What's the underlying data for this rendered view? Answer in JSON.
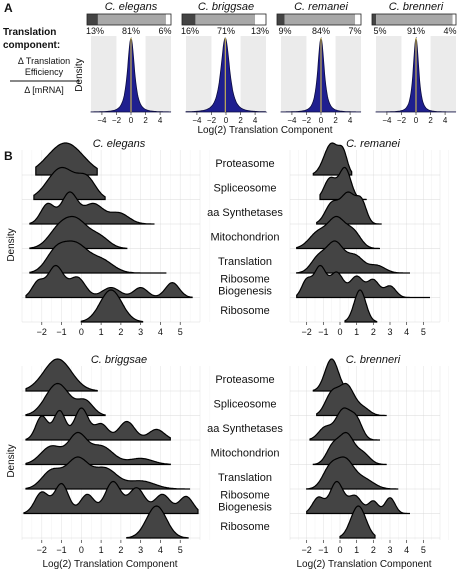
{
  "chart_data": [
    {
      "panel": "A",
      "type": "area",
      "description_label_lines": [
        "Translation",
        "component:",
        "Δ Translation",
        "Efficiency",
        "Δ [mRNA]"
      ],
      "ylabel": "Density",
      "xlabel": "Log(2) Translation Component",
      "xlim": [
        -5.5,
        5.5
      ],
      "x_ticks": [
        -4,
        -2,
        0,
        2,
        4
      ],
      "fill_color": "#1f1f8f",
      "species": [
        {
          "name": "C. elegans",
          "bar_percents": [
            "13%",
            "81%",
            "6%"
          ],
          "segments": [
            0.13,
            0.81,
            0.06
          ],
          "peak": 0.0,
          "spread": 0.75
        },
        {
          "name": "C. briggsae",
          "bar_percents": [
            "16%",
            "71%",
            "13%"
          ],
          "segments": [
            0.16,
            0.71,
            0.13
          ],
          "peak": -0.1,
          "spread": 0.95
        },
        {
          "name": "C. remanei",
          "bar_percents": [
            "9%",
            "84%",
            "7%"
          ],
          "segments": [
            0.09,
            0.84,
            0.07
          ],
          "peak": 0.0,
          "spread": 0.7
        },
        {
          "name": "C. brenneri",
          "bar_percents": [
            "5%",
            "91%",
            "4%"
          ],
          "segments": [
            0.05,
            0.91,
            0.04
          ],
          "peak": 0.0,
          "spread": 0.6
        }
      ]
    },
    {
      "panel": "B",
      "type": "area",
      "subtype": "ridgeline",
      "ylabel": "Density",
      "xlabel": "Log(2) Translation Component",
      "categories": [
        "Proteasome",
        "Spliceosome",
        "aa Synthetases",
        "Mitochondrion",
        "Translation",
        "Ribosome Biogenesis",
        "Ribosome"
      ],
      "category_label_lines": [
        [
          "Proteasome"
        ],
        [
          "Spliceosome"
        ],
        [
          "aa Synthetases"
        ],
        [
          "Mitochondrion"
        ],
        [
          "Translation"
        ],
        [
          "Ribosome",
          "Biogenesis"
        ],
        [
          "Ribosome"
        ]
      ],
      "fill_color": "#444444",
      "species": [
        {
          "name": "C. elegans",
          "x_ticks": [
            -2,
            -1,
            0,
            1,
            2,
            3,
            4,
            5
          ],
          "xlim": [
            -3,
            6
          ],
          "ridges": [
            {
              "category": "Proteasome",
              "range": [
                -2.3,
                0.8
              ],
              "peaks": [
                [
                  -0.8,
                  0.9,
                  1.0
                ]
              ]
            },
            {
              "category": "Spliceosome",
              "range": [
                -2.4,
                1.2
              ],
              "peaks": [
                [
                  -1.0,
                  0.7,
                  0.6
                ],
                [
                  0.3,
                  0.45,
                  0.35
                ]
              ]
            },
            {
              "category": "aa Synthetases",
              "range": [
                -2.6,
                3.7
              ],
              "peaks": [
                [
                  -1.7,
                  0.35,
                  0.55
                ],
                [
                  -0.6,
                  0.4,
                  0.85
                ],
                [
                  0.6,
                  0.5,
                  0.55
                ],
                [
                  1.9,
                  0.5,
                  0.3
                ]
              ]
            },
            {
              "category": "Mitochondrion",
              "range": [
                -2.6,
                2.3
              ],
              "peaks": [
                [
                  -1.1,
                  0.55,
                  0.6
                ],
                [
                  -0.2,
                  0.55,
                  0.75
                ],
                [
                  0.9,
                  0.5,
                  0.35
                ]
              ]
            },
            {
              "category": "Translation",
              "range": [
                -2.6,
                4.3
              ],
              "peaks": [
                [
                  -1.3,
                  0.5,
                  0.55
                ],
                [
                  -0.3,
                  0.6,
                  0.75
                ],
                [
                  1.0,
                  0.6,
                  0.35
                ]
              ]
            },
            {
              "category": "Ribosome Biogenesis",
              "range": [
                -2.8,
                5.6
              ],
              "peaks": [
                [
                  -2.2,
                  0.3,
                  0.45
                ],
                [
                  -1.3,
                  0.4,
                  0.95
                ],
                [
                  -0.2,
                  0.4,
                  0.6
                ],
                [
                  1.5,
                  0.45,
                  0.3
                ],
                [
                  3.0,
                  0.35,
                  0.3
                ],
                [
                  4.6,
                  0.35,
                  0.45
                ]
              ]
            },
            {
              "category": "Ribosome",
              "range": [
                0.0,
                3.1
              ],
              "peaks": [
                [
                  1.5,
                  0.55,
                  1.0
                ]
              ]
            }
          ]
        },
        {
          "name": "C. remanei",
          "x_ticks": [
            -2,
            -1,
            0,
            1,
            2,
            3,
            4,
            5
          ],
          "xlim": [
            -3,
            6
          ],
          "ridges": [
            {
              "category": "Proteasome",
              "range": [
                -1.6,
                0.7
              ],
              "peaks": [
                [
                  -0.5,
                  0.45,
                  1.0
                ],
                [
                  0.2,
                  0.25,
                  0.55
                ]
              ]
            },
            {
              "category": "Spliceosome",
              "range": [
                -1.2,
                1.6
              ],
              "peaks": [
                [
                  -0.6,
                  0.35,
                  0.6
                ],
                [
                  0.3,
                  0.35,
                  0.9
                ]
              ]
            },
            {
              "category": "aa Synthetases",
              "range": [
                -1.4,
                2.5
              ],
              "peaks": [
                [
                  -0.5,
                  0.4,
                  0.45
                ],
                [
                  0.5,
                  0.45,
                  0.7
                ],
                [
                  1.3,
                  0.3,
                  0.45
                ]
              ]
            },
            {
              "category": "Mitochondrion",
              "range": [
                -2.6,
                2.4
              ],
              "peaks": [
                [
                  -1.3,
                  0.55,
                  0.45
                ],
                [
                  -0.2,
                  0.5,
                  0.8
                ],
                [
                  0.8,
                  0.45,
                  0.45
                ]
              ]
            },
            {
              "category": "Translation",
              "range": [
                -2.6,
                4.2
              ],
              "peaks": [
                [
                  -1.3,
                  0.45,
                  0.4
                ],
                [
                  -0.3,
                  0.5,
                  0.8
                ],
                [
                  0.9,
                  0.5,
                  0.45
                ],
                [
                  2.2,
                  0.5,
                  0.2
                ]
              ]
            },
            {
              "category": "Ribosome Biogenesis",
              "range": [
                -2.6,
                5.4
              ],
              "peaks": [
                [
                  -2.0,
                  0.3,
                  0.45
                ],
                [
                  -1.2,
                  0.35,
                  0.8
                ],
                [
                  -0.2,
                  0.4,
                  0.65
                ],
                [
                  1.0,
                  0.4,
                  0.55
                ],
                [
                  2.0,
                  0.35,
                  0.45
                ],
                [
                  3.0,
                  0.35,
                  0.3
                ]
              ]
            },
            {
              "category": "Ribosome",
              "range": [
                0.3,
                2.2
              ],
              "peaks": [
                [
                  1.2,
                  0.35,
                  1.0
                ]
              ]
            }
          ]
        },
        {
          "name": "C. briggsae",
          "x_ticks": [
            -2,
            -1,
            0,
            1,
            2,
            3,
            4,
            5
          ],
          "xlim": [
            -3,
            6
          ],
          "ridges": [
            {
              "category": "Proteasome",
              "range": [
                -2.8,
                0.8
              ],
              "peaks": [
                [
                  -1.2,
                  0.7,
                  1.0
                ]
              ]
            },
            {
              "category": "Spliceosome",
              "range": [
                -2.8,
                1.2
              ],
              "peaks": [
                [
                  -1.2,
                  0.6,
                  0.8
                ],
                [
                  0.2,
                  0.4,
                  0.35
                ]
              ]
            },
            {
              "category": "aa Synthetases",
              "range": [
                -2.8,
                4.5
              ],
              "peaks": [
                [
                  -2.0,
                  0.3,
                  0.45
                ],
                [
                  -1.1,
                  0.3,
                  0.55
                ],
                [
                  0.0,
                  0.35,
                  0.6
                ],
                [
                  1.0,
                  0.35,
                  0.3
                ],
                [
                  2.3,
                  0.4,
                  0.35
                ],
                [
                  3.8,
                  0.4,
                  0.2
                ]
              ]
            },
            {
              "category": "Mitochondrion",
              "range": [
                -2.8,
                4.5
              ],
              "peaks": [
                [
                  -1.5,
                  0.55,
                  0.45
                ],
                [
                  -0.2,
                  0.45,
                  0.7
                ],
                [
                  1.0,
                  0.6,
                  0.45
                ],
                [
                  3.0,
                  0.6,
                  0.15
                ]
              ]
            },
            {
              "category": "Translation",
              "range": [
                -2.8,
                5.5
              ],
              "peaks": [
                [
                  -1.5,
                  0.5,
                  0.45
                ],
                [
                  -0.2,
                  0.55,
                  0.75
                ],
                [
                  1.2,
                  0.6,
                  0.5
                ],
                [
                  3.0,
                  0.7,
                  0.2
                ]
              ]
            },
            {
              "category": "Ribosome Biogenesis",
              "range": [
                -2.9,
                5.9
              ],
              "peaks": [
                [
                  -2.0,
                  0.35,
                  0.5
                ],
                [
                  -1.0,
                  0.35,
                  0.7
                ],
                [
                  0.3,
                  0.35,
                  0.45
                ],
                [
                  1.6,
                  0.4,
                  0.75
                ],
                [
                  2.8,
                  0.4,
                  0.6
                ],
                [
                  4.1,
                  0.4,
                  0.45
                ],
                [
                  5.3,
                  0.35,
                  0.4
                ]
              ]
            },
            {
              "category": "Ribosome",
              "range": [
                2.3,
                5.4
              ],
              "peaks": [
                [
                  3.8,
                  0.5,
                  1.0
                ]
              ]
            }
          ]
        },
        {
          "name": "C. brenneri",
          "x_ticks": [
            -2,
            -1,
            0,
            1,
            2,
            3,
            4,
            5
          ],
          "xlim": [
            -3,
            6
          ],
          "ridges": [
            {
              "category": "Proteasome",
              "range": [
                -1.6,
                0.6
              ],
              "peaks": [
                [
                  -0.5,
                  0.4,
                  1.0
                ]
              ]
            },
            {
              "category": "Spliceosome",
              "range": [
                -1.4,
                2.8
              ],
              "peaks": [
                [
                  -0.5,
                  0.4,
                  0.6
                ],
                [
                  0.4,
                  0.45,
                  0.85
                ],
                [
                  1.4,
                  0.4,
                  0.2
                ]
              ]
            },
            {
              "category": "aa Synthetases",
              "range": [
                -1.8,
                2.4
              ],
              "peaks": [
                [
                  -0.9,
                  0.4,
                  0.3
                ],
                [
                  0.2,
                  0.45,
                  0.75
                ],
                [
                  1.0,
                  0.35,
                  0.45
                ]
              ]
            },
            {
              "category": "Mitochondrion",
              "range": [
                -1.6,
                2.8
              ],
              "peaks": [
                [
                  -0.4,
                  0.4,
                  0.55
                ],
                [
                  0.4,
                  0.4,
                  0.8
                ],
                [
                  1.3,
                  0.45,
                  0.35
                ]
              ]
            },
            {
              "category": "Translation",
              "range": [
                -2.0,
                3.5
              ],
              "peaks": [
                [
                  -0.6,
                  0.45,
                  0.6
                ],
                [
                  0.3,
                  0.5,
                  0.8
                ],
                [
                  1.4,
                  0.6,
                  0.3
                ]
              ]
            },
            {
              "category": "Ribosome Biogenesis",
              "range": [
                -2.0,
                4.2
              ],
              "peaks": [
                [
                  -1.3,
                  0.35,
                  0.45
                ],
                [
                  -0.2,
                  0.4,
                  0.9
                ],
                [
                  0.9,
                  0.4,
                  0.5
                ],
                [
                  2.0,
                  0.3,
                  0.35
                ],
                [
                  3.0,
                  0.3,
                  0.45
                ]
              ]
            },
            {
              "category": "Ribosome",
              "range": [
                0.0,
                2.1
              ],
              "peaks": [
                [
                  1.1,
                  0.45,
                  1.0
                ]
              ]
            }
          ]
        }
      ]
    }
  ]
}
